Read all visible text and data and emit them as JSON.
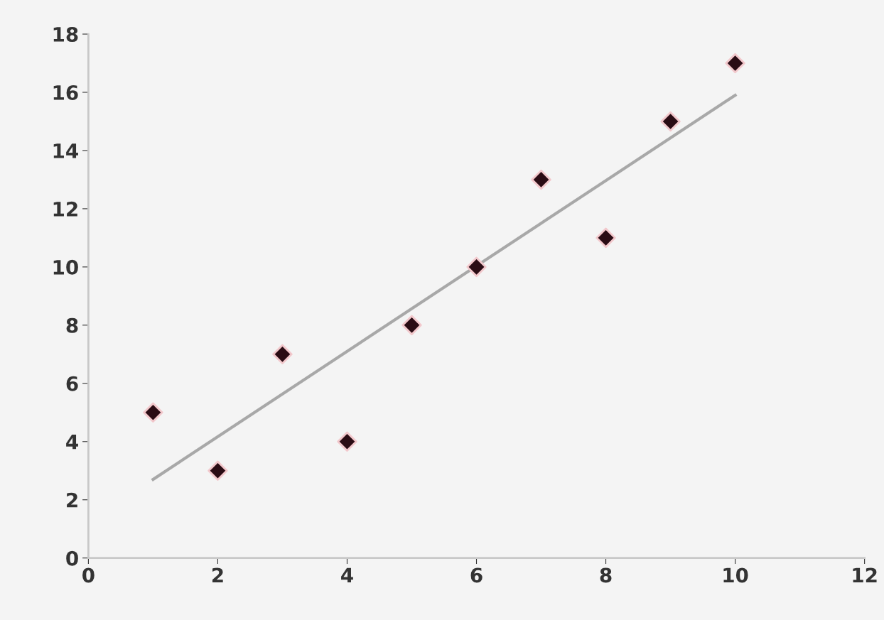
{
  "chart_data": {
    "type": "scatter",
    "x": [
      1,
      2,
      3,
      4,
      5,
      6,
      7,
      8,
      9,
      10
    ],
    "series": [
      {
        "color": "#2a0c14",
        "marker": "diamond",
        "values": [
          5,
          3,
          7,
          4,
          8,
          10,
          13,
          11,
          15,
          17
        ]
      },
      {
        "type": "line",
        "color": "#a8a8a8",
        "marker": "none",
        "x": [
          1,
          10
        ],
        "values": [
          2.7,
          15.9
        ]
      }
    ],
    "xlim": [
      0,
      12
    ],
    "xticks": [
      0,
      2,
      4,
      6,
      8,
      10,
      12
    ],
    "ylim": [
      0,
      18
    ],
    "yticks": [
      0,
      2,
      4,
      6,
      8,
      10,
      12,
      14,
      16,
      18
    ],
    "grid": false
  }
}
